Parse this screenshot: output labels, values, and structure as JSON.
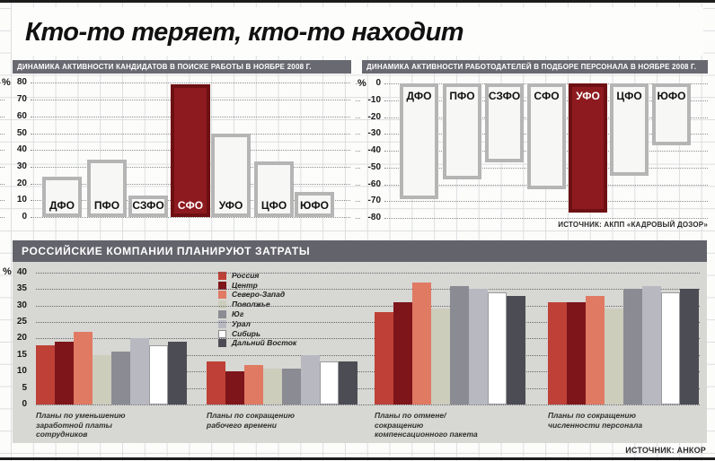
{
  "title": "Кто-то теряет, кто-то находит",
  "chart_data": [
    {
      "type": "bar",
      "title": "ДИНАМИКА АКТИВНОСТИ КАНДИДАТОВ В ПОИСКЕ РАБОТЫ В НОЯБРЕ 2008 Г.",
      "categories": [
        "ДФО",
        "ПФО",
        "СЗФО",
        "СФО",
        "УФО",
        "ЦФО",
        "ЮФО"
      ],
      "values": [
        24,
        34,
        13,
        79,
        50,
        33,
        15
      ],
      "highlight_category": "СФО",
      "highlight_color": "#8d1a1f",
      "bar_style": "outlined-white",
      "ylabel": "%",
      "ylim": [
        0,
        80
      ],
      "yticks": [
        0,
        10,
        20,
        30,
        40,
        50,
        60,
        70,
        80
      ],
      "grid": "dotted-horizontal"
    },
    {
      "type": "bar",
      "title": "ДИНАМИКА АКТИВНОСТИ РАБОТОДАТЕЛЕЙ В ПОДБОРЕ ПЕРСОНАЛА В НОЯБРЕ 2008 Г.",
      "categories": [
        "ДФО",
        "ПФО",
        "СЗФО",
        "СФО",
        "УФО",
        "ЦФО",
        "ЮФО"
      ],
      "values": [
        -69,
        -57,
        -47,
        -63,
        -77,
        -55,
        -37
      ],
      "highlight_category": "УФО",
      "highlight_color": "#8d1a1f",
      "bar_style": "outlined-white",
      "ylabel": "%",
      "ylim": [
        -80,
        0
      ],
      "yticks": [
        0,
        -10,
        -20,
        -30,
        -40,
        -50,
        -60,
        -70,
        -80
      ],
      "grid": "dotted-horizontal",
      "source": "ИСТОЧНИК: АКПП «КАДРОВЫЙ ДОЗОР»"
    },
    {
      "type": "bar",
      "title": "РОССИЙСКИЕ КОМПАНИИ ПЛАНИРУЮТ ЗАТРАТЫ",
      "categories": [
        "Планы по уменьшению\nзаработной платы\nсотрудников",
        "Планы по сокращению\nрабочего времени",
        "Планы по отмене/\nсокращению\nкомпенсационного пакета",
        "Планы по сокращению\nчисленности персонала"
      ],
      "series": [
        {
          "name": "Россия",
          "color": "#bf4036",
          "values": [
            18,
            13,
            28,
            31
          ]
        },
        {
          "name": "Центр",
          "color": "#7e151a",
          "values": [
            19,
            10,
            31,
            31
          ]
        },
        {
          "name": "Северо-Запад",
          "color": "#e07a63",
          "values": [
            22,
            12,
            37,
            33
          ]
        },
        {
          "name": "Поволжье",
          "color": "#cdcdbc",
          "values": [
            15,
            11,
            29,
            29
          ]
        },
        {
          "name": "Юг",
          "color": "#8b8b93",
          "values": [
            16,
            11,
            36,
            35
          ]
        },
        {
          "name": "Урал",
          "color": "#b8b8c0",
          "values": [
            20,
            15,
            35,
            36
          ]
        },
        {
          "name": "Сибирь",
          "color": "#ffffff",
          "values": [
            18,
            13,
            34,
            34
          ]
        },
        {
          "name": "Дальний Восток",
          "color": "#4c4c54",
          "values": [
            19,
            13,
            33,
            35
          ]
        }
      ],
      "ylabel": "%",
      "ylim": [
        0,
        40
      ],
      "yticks": [
        0,
        5,
        10,
        15,
        20,
        25,
        30,
        35,
        40
      ],
      "grid": "dotted-horizontal",
      "legend_position": "inside-top",
      "source": "ИСТОЧНИК: АНКОР"
    }
  ]
}
